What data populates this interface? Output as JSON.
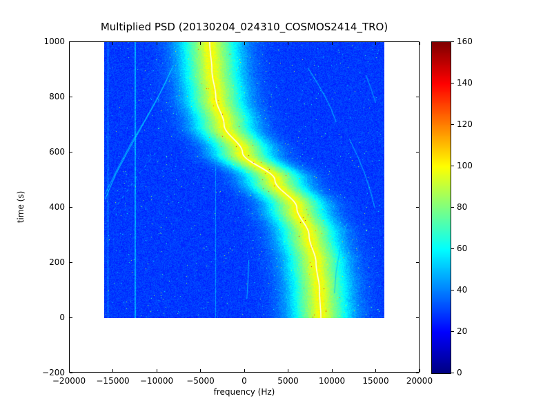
{
  "chart_data": {
    "type": "heatmap",
    "title": "Multiplied PSD (20130204_024310_COSMOS2414_TRO)",
    "xlabel": "frequency (Hz)",
    "ylabel": "time (s)",
    "xlim": [
      -20000,
      20000
    ],
    "ylim": [
      -200,
      1000
    ],
    "x_ticks": {
      "values": [
        -20000,
        -15000,
        -10000,
        -5000,
        0,
        5000,
        10000,
        15000,
        20000
      ],
      "labels": [
        "−20000",
        "−15000",
        "−10000",
        "−5000",
        "0",
        "5000",
        "10000",
        "15000",
        "20000"
      ]
    },
    "y_ticks": {
      "values": [
        -200,
        0,
        200,
        400,
        600,
        800,
        1000
      ],
      "labels": [
        "−200",
        "0",
        "200",
        "400",
        "600",
        "800",
        "1000"
      ]
    },
    "colormap": "jet",
    "colorbar": {
      "min": 0,
      "max": 160,
      "tick_values": [
        0,
        20,
        40,
        60,
        80,
        100,
        120,
        140,
        160
      ],
      "tick_labels": [
        "0",
        "20",
        "40",
        "60",
        "80",
        "100",
        "120",
        "140",
        "160"
      ]
    },
    "image_extent": {
      "f_min": -16000,
      "f_max": 16000,
      "t_min": 0,
      "t_max": 1000
    },
    "background_value": 29,
    "noise_amplitude": 5,
    "speckle_chance": 0.004,
    "main_trace": {
      "points_time_freq": [
        [
          0,
          8750
        ],
        [
          100,
          8600
        ],
        [
          200,
          8200
        ],
        [
          300,
          7400
        ],
        [
          400,
          6000
        ],
        [
          500,
          3500
        ],
        [
          600,
          -200
        ],
        [
          700,
          -2300
        ],
        [
          800,
          -3250
        ],
        [
          900,
          -3700
        ],
        [
          1000,
          -3950
        ]
      ],
      "sigma_hz": 2400,
      "peak_value": 62,
      "core_sigma_hz": 600,
      "core_extra_value": 8,
      "center_line_color": "#ffffff"
    },
    "secondary_traces": [
      {
        "points_time_freq": [
          [
            430,
            -15900
          ],
          [
            520,
            -14700
          ],
          [
            610,
            -13200
          ],
          [
            700,
            -11600
          ],
          [
            790,
            -10000
          ],
          [
            860,
            -8900
          ],
          [
            905,
            -8250
          ]
        ],
        "value": 58,
        "width": 1
      },
      {
        "points_time_freq": [
          [
            450,
            -15900
          ],
          [
            540,
            -14500
          ],
          [
            630,
            -13000
          ],
          [
            720,
            -11300
          ],
          [
            810,
            -9700
          ],
          [
            875,
            -8700
          ],
          [
            915,
            -8100
          ]
        ],
        "value": 52,
        "width": 1
      },
      {
        "points_time_freq": [
          [
            390,
            -14950
          ],
          [
            450,
            -13600
          ],
          [
            520,
            -12100
          ],
          [
            575,
            -10700
          ],
          [
            620,
            -9600
          ]
        ],
        "value": 50,
        "width": 1,
        "dash": [
          4,
          7
        ]
      },
      {
        "points_time_freq": [
          [
            905,
            7300
          ],
          [
            860,
            8200
          ],
          [
            810,
            9100
          ],
          [
            760,
            9900
          ],
          [
            710,
            10500
          ]
        ],
        "value": 55,
        "width": 1
      },
      {
        "points_time_freq": [
          [
            880,
            13900
          ],
          [
            830,
            14500
          ],
          [
            780,
            15000
          ]
        ],
        "value": 50,
        "width": 1
      },
      {
        "points_time_freq": [
          [
            650,
            12000
          ],
          [
            590,
            12900
          ],
          [
            520,
            13800
          ],
          [
            450,
            14500
          ],
          [
            400,
            14900
          ]
        ],
        "value": 52,
        "width": 1
      },
      {
        "points_time_freq": [
          [
            340,
            11700
          ],
          [
            260,
            11000
          ],
          [
            170,
            10500
          ],
          [
            90,
            10300
          ]
        ],
        "value": 50,
        "width": 1
      },
      {
        "points_time_freq": [
          [
            70,
            300
          ],
          [
            140,
            420
          ],
          [
            210,
            520
          ]
        ],
        "value": 52,
        "width": 1
      }
    ],
    "vertical_lines": [
      {
        "f": -15600,
        "value": 45
      },
      {
        "f": -12450,
        "value": 47
      },
      {
        "f": -3300,
        "value": 45
      }
    ]
  }
}
